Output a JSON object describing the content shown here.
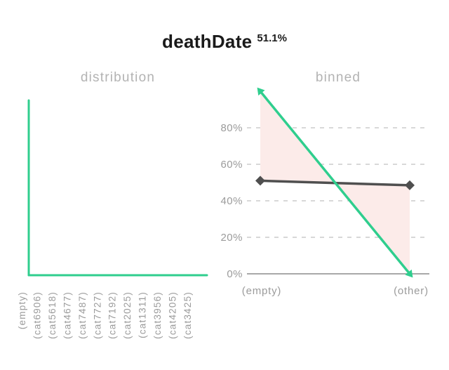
{
  "header": {
    "title": "deathDate",
    "value": "51.1%"
  },
  "colors": {
    "green": "#2fce8e",
    "dark": "#4f4f4f",
    "fill": "#fcebe9",
    "grid": "#cccccc",
    "axis": "#a8a8a8",
    "tick": "#9b9b9b",
    "panel_title": "#b3b3b3",
    "title_text": "#1a1a1a"
  },
  "chart_data": [
    {
      "id": "distribution",
      "type": "line",
      "title": "distribution",
      "categories": [
        "(empty)",
        "(cat6906)",
        "(cat5618)",
        "(cat4677)",
        "(cat7487)",
        "(cat7727)",
        "(cat7192)",
        "(cat2025)",
        "(cat1311)",
        "(cat3956)",
        "(cat4205)",
        "(cat3425)"
      ],
      "values": [
        100,
        0,
        0,
        0,
        0,
        0,
        0,
        0,
        0,
        0,
        0,
        0
      ],
      "ylim": [
        0,
        100
      ],
      "grid": false,
      "line_color": "green"
    },
    {
      "id": "binned",
      "type": "line",
      "title": "binned",
      "categories": [
        "(empty)",
        "(other)"
      ],
      "series": [
        {
          "name": "green-series",
          "color": "green",
          "values": [
            100,
            0
          ]
        },
        {
          "name": "gray-series",
          "color": "dark",
          "values": [
            51,
            48.5
          ]
        }
      ],
      "yticks": [
        {
          "label": "0%",
          "value": 0
        },
        {
          "label": "20%",
          "value": 20
        },
        {
          "label": "40%",
          "value": 40
        },
        {
          "label": "60%",
          "value": 60
        },
        {
          "label": "80%",
          "value": 80
        }
      ],
      "ylim": [
        0,
        100
      ],
      "grid": true,
      "legend": false,
      "fill_between": true
    }
  ]
}
